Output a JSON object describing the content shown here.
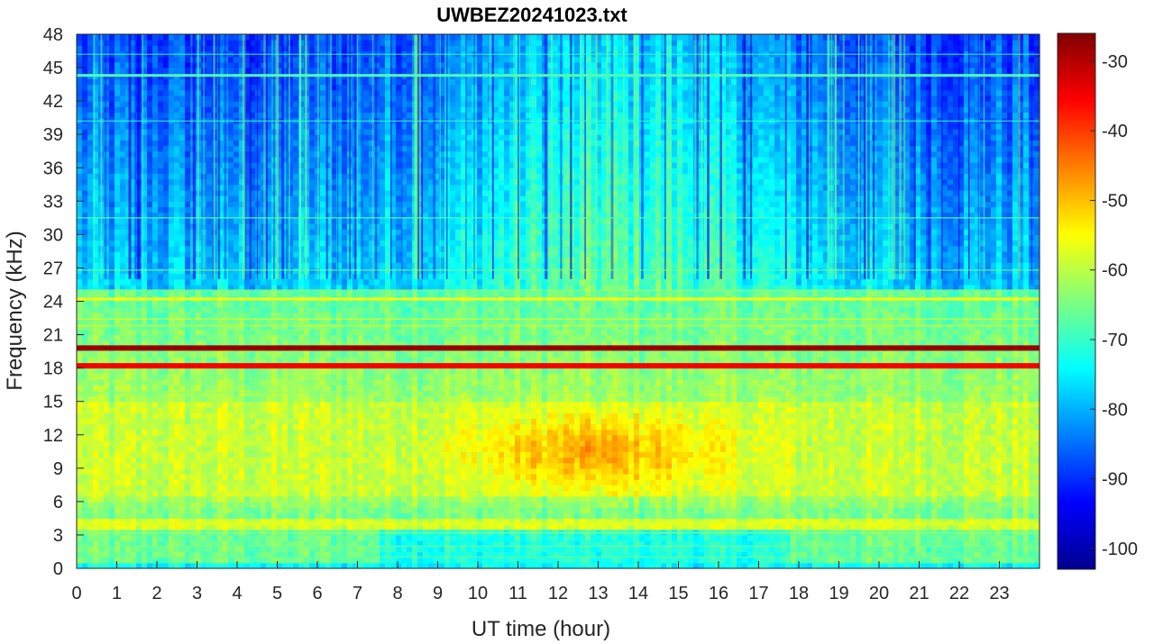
{
  "chart_data": {
    "type": "heatmap",
    "title": "UWBEZ20241023.txt",
    "xlabel": "UT time (hour)",
    "ylabel": "Frequency (kHz)",
    "xlim": [
      0,
      24
    ],
    "ylim": [
      0,
      48
    ],
    "x_ticks": [
      "0",
      "1",
      "2",
      "3",
      "4",
      "5",
      "6",
      "7",
      "8",
      "9",
      "10",
      "11",
      "12",
      "13",
      "14",
      "15",
      "16",
      "17",
      "18",
      "19",
      "20",
      "21",
      "22",
      "23"
    ],
    "y_ticks": [
      "0",
      "3",
      "6",
      "9",
      "12",
      "15",
      "18",
      "21",
      "24",
      "27",
      "30",
      "33",
      "36",
      "39",
      "42",
      "45",
      "48"
    ],
    "colorbar": {
      "colormap": "jet",
      "clim": [
        -103,
        -26
      ],
      "ticks": [
        "-30",
        "-40",
        "-50",
        "-60",
        "-70",
        "-80",
        "-90",
        "-100"
      ]
    },
    "features": [
      {
        "kind": "band",
        "freq_khz": [
          5,
          17
        ],
        "level_db": -58
      },
      {
        "kind": "band",
        "freq_khz": [
          26,
          48
        ],
        "level_db": -88
      },
      {
        "kind": "line",
        "freq_khz": 19.8,
        "level_db": -28
      },
      {
        "kind": "line",
        "freq_khz": 18.2,
        "level_db": -35
      },
      {
        "kind": "line",
        "freq_khz": 24.2,
        "level_db": -55
      },
      {
        "kind": "line",
        "freq_khz": 44.3,
        "level_db": -68
      },
      {
        "kind": "blob",
        "time_h": [
          10,
          16
        ],
        "freq_khz": [
          7,
          14
        ],
        "level_db": -50
      }
    ]
  }
}
